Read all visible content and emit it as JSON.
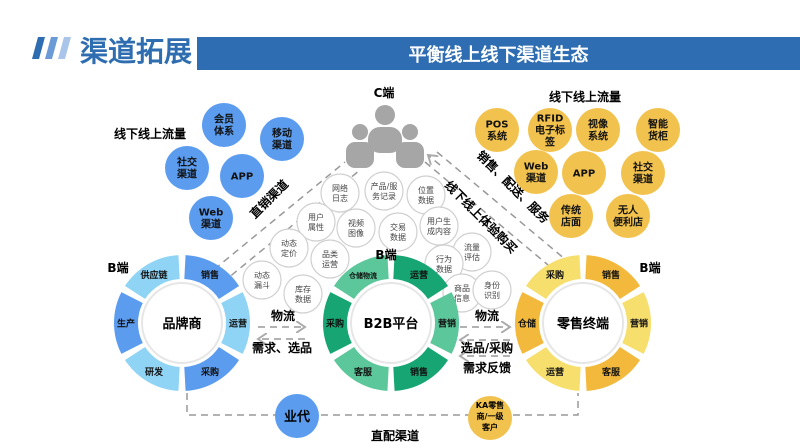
{
  "header": {
    "title": "渠道拓展",
    "banner": "平衡线上线下渠道生态"
  },
  "colors": {
    "brand_blue": "#2f6db3",
    "blue_dark": "#5b9cef",
    "blue_light": "#8fd4f5",
    "green_dark": "#17a673",
    "green_light": "#5cc79a",
    "yellow_dark": "#f2b93c",
    "yellow_light": "#f7df6e",
    "bubble_blue": "#5b9cef",
    "bubble_yellow": "#f2c24e"
  },
  "c_end": {
    "label": "C端",
    "icon": "users-icon"
  },
  "left_traffic": {
    "label": "线下线上流量",
    "items": [
      [
        "会员",
        "体系"
      ],
      [
        "移动",
        "渠道"
      ],
      [
        "社交",
        "渠道"
      ],
      [
        "APP"
      ],
      [
        "Web",
        "渠道"
      ]
    ]
  },
  "right_traffic": {
    "label": "线下线上流量",
    "items": [
      [
        "POS",
        "系统"
      ],
      [
        "RFID",
        "电子标",
        "签"
      ],
      [
        "视像",
        "系统"
      ],
      [
        "智能",
        "货柜"
      ],
      [
        "Web",
        "渠道"
      ],
      [
        "APP"
      ],
      [
        "社交",
        "渠道"
      ],
      [
        "传统",
        "店面"
      ],
      [
        "无人",
        "便利店"
      ]
    ]
  },
  "data_bubbles": [
    [
      "网络",
      "日志"
    ],
    [
      "产品/服",
      "务记录"
    ],
    [
      "位置",
      "数据"
    ],
    [
      "用户",
      "属性"
    ],
    [
      "视频",
      "图像"
    ],
    [
      "交易",
      "数据"
    ],
    [
      "用户生",
      "成内容"
    ],
    [
      "动态",
      "定价"
    ],
    [
      "品类",
      "运营"
    ],
    [
      "流量",
      "评估"
    ],
    [
      "行为",
      "数据"
    ],
    [
      "动态",
      "漏斗"
    ],
    [
      "库存",
      "数据"
    ],
    [
      "商品",
      "信息"
    ],
    [
      "身份",
      "识别"
    ]
  ],
  "channels": {
    "direct_sales": "直销渠道",
    "offline_online": "线下线上体验购买",
    "sales_delivery": "销售、配送、服务",
    "direct_distribution": "直配渠道"
  },
  "rings": [
    {
      "b_label": "B端",
      "center": "品牌商",
      "segments": [
        "销售",
        "运营",
        "采购",
        "研发",
        "生产",
        "供应链"
      ]
    },
    {
      "b_label": "B端",
      "center": "B2B平台",
      "segments": [
        "运营",
        "营销",
        "销售",
        "客服",
        "采购",
        "仓储物流"
      ]
    },
    {
      "b_label": "B端",
      "center": "零售终端",
      "segments": [
        "销售",
        "营销",
        "客服",
        "运营",
        "仓储",
        "采购"
      ]
    }
  ],
  "flows_left": {
    "top": "物流",
    "bottom": "需求、选品"
  },
  "flows_right": {
    "top": "物流",
    "middle": "选品/采购",
    "bottom": "需求反馈"
  },
  "bottom_nodes": {
    "agent": "业代",
    "ka": [
      "KA零售",
      "商/一级",
      "客户"
    ]
  }
}
